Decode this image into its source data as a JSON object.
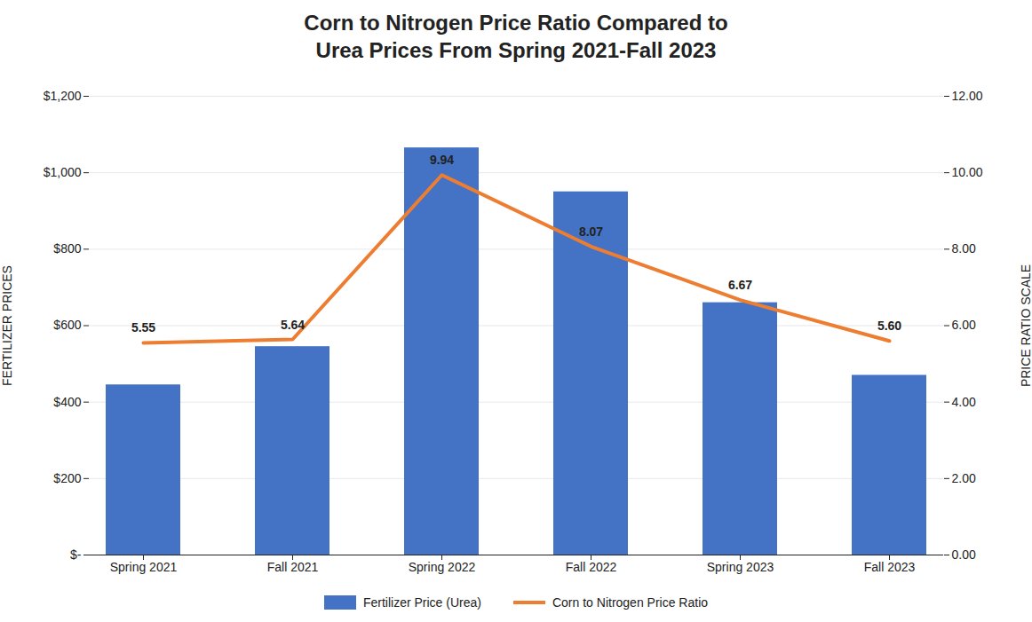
{
  "chart_data": {
    "type": "bar",
    "title": "Corn to Nitrogen Price Ratio Compared to\nUrea Prices From Spring 2021-Fall 2023",
    "categories": [
      "Spring 2021",
      "Fall 2021",
      "Spring 2022",
      "Fall 2022",
      "Spring 2023",
      "Fall 2023"
    ],
    "series": [
      {
        "name": "Fertilizer Price (Urea)",
        "type": "bar",
        "color": "#4472C4",
        "values": [
          445,
          545,
          1065,
          950,
          660,
          470
        ]
      },
      {
        "name": "Corn to Nitrogen Price Ratio",
        "type": "line",
        "axis": "y2",
        "color": "#ED7D31",
        "values": [
          5.55,
          5.64,
          9.94,
          8.07,
          6.67,
          5.6
        ],
        "value_labels": [
          "5.55",
          "5.64",
          "9.94",
          "8.07",
          "6.67",
          "5.60"
        ],
        "data_labels": true
      }
    ],
    "ylabel": "FERTILIZER PRICES",
    "y2label": "PRICE RATIO SCALE",
    "ylim": [
      0,
      1200
    ],
    "yticks": [
      {
        "value": 0,
        "label": "$-"
      },
      {
        "value": 200,
        "label": "$200"
      },
      {
        "value": 400,
        "label": "$400"
      },
      {
        "value": 600,
        "label": "$600"
      },
      {
        "value": 800,
        "label": "$800"
      },
      {
        "value": 1000,
        "label": "$1,000"
      },
      {
        "value": 1200,
        "label": "$1,200"
      }
    ],
    "y2lim": [
      0,
      12
    ],
    "y2ticks": [
      {
        "value": 0,
        "label": "0.00"
      },
      {
        "value": 2,
        "label": "2.00"
      },
      {
        "value": 4,
        "label": "4.00"
      },
      {
        "value": 6,
        "label": "6.00"
      },
      {
        "value": 8,
        "label": "8.00"
      },
      {
        "value": 10,
        "label": "10.00"
      },
      {
        "value": 12,
        "label": "12.00"
      }
    ],
    "grid": true,
    "legend": "bottom"
  }
}
